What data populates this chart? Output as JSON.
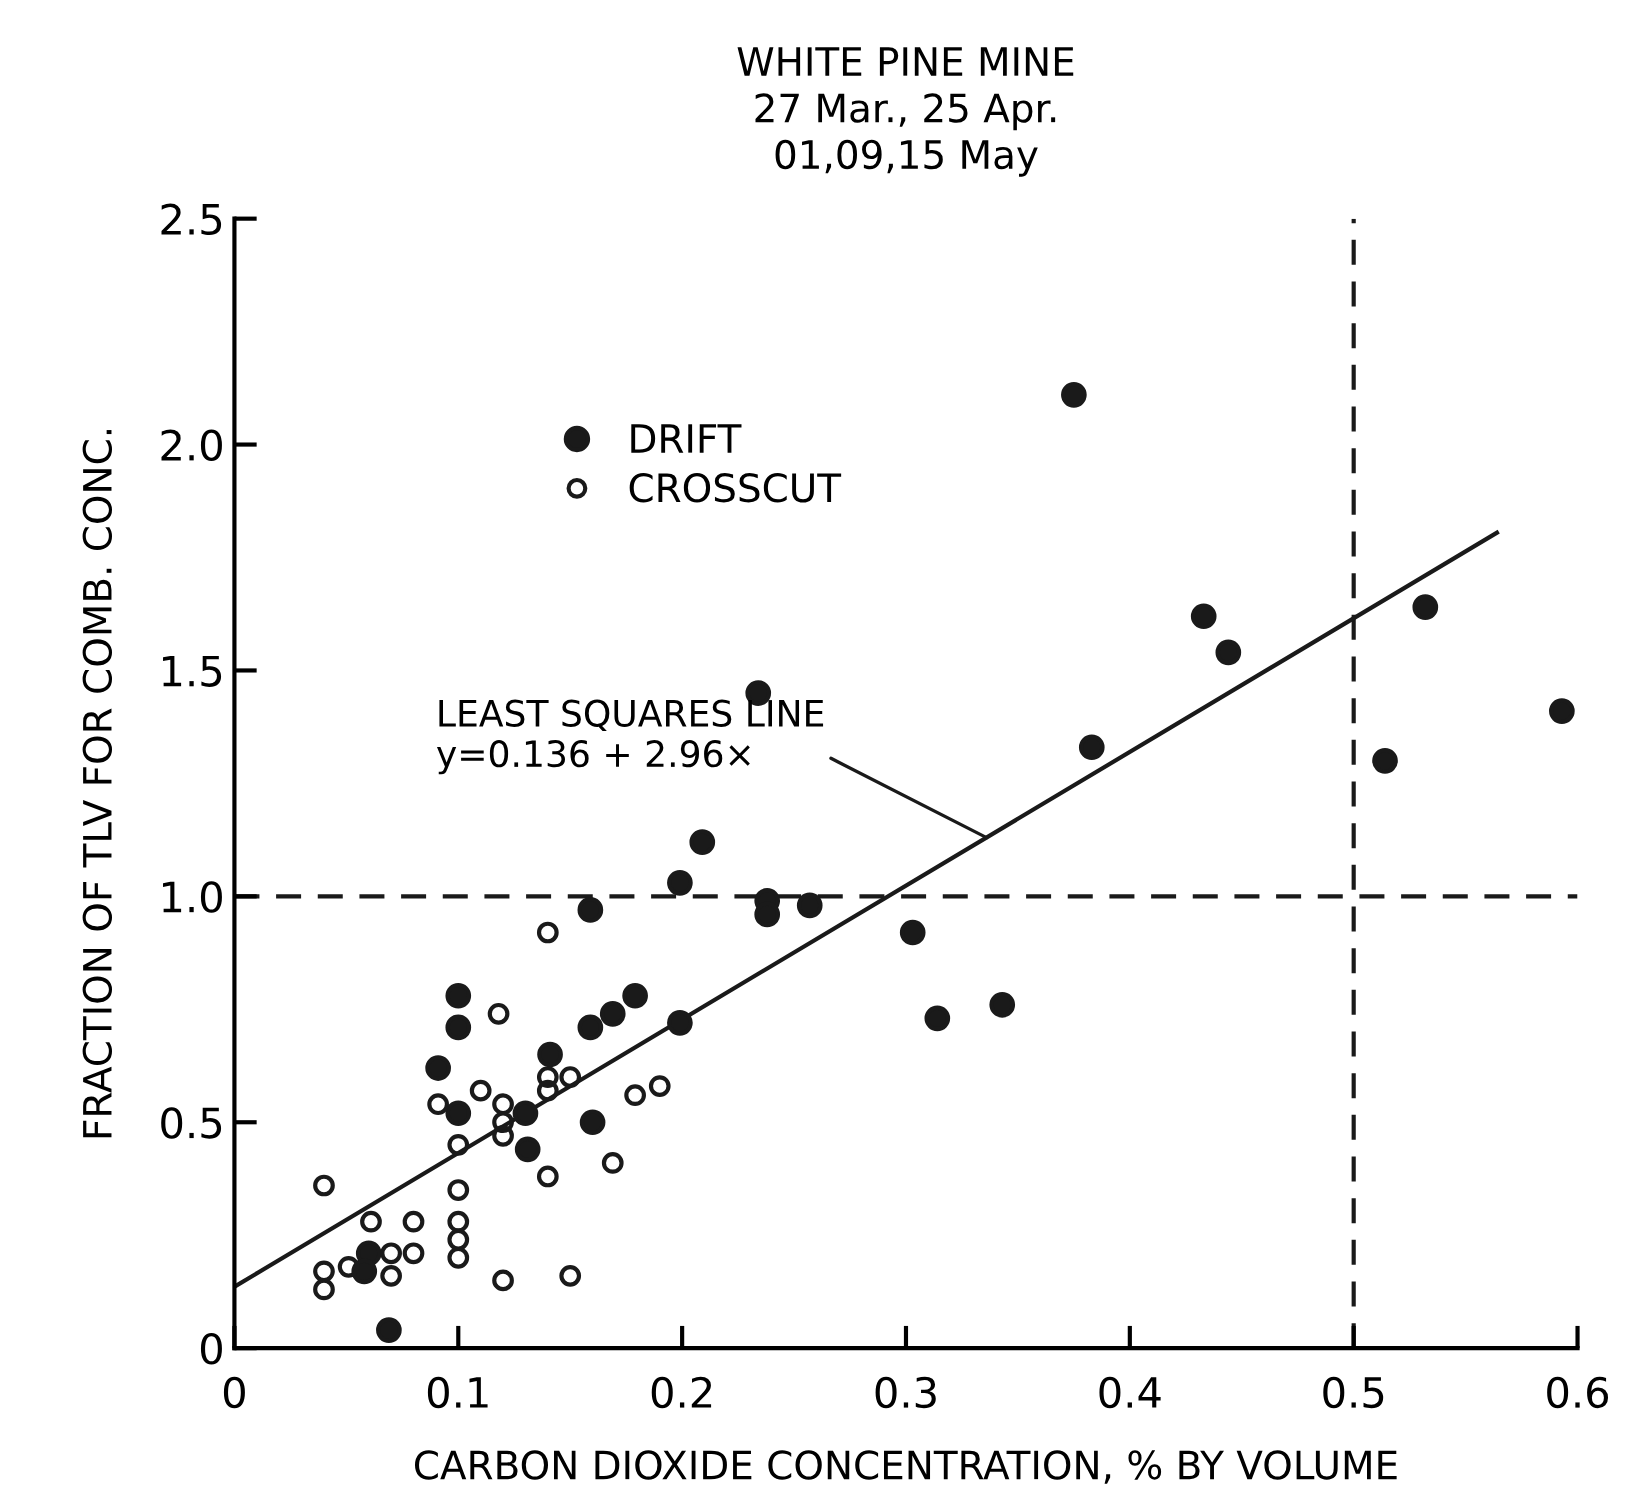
{
  "chart_data": {
    "type": "scatter",
    "title": "WHITE PINE MINE\n27 Mar., 25 Apr.\n01,09,15 May",
    "xlabel": "CARBON DIOXIDE CONCENTRATION, % BY VOLUME",
    "ylabel": "FRACTION OF TLV FOR COMB. CONC.",
    "xlim": [
      0,
      0.6
    ],
    "ylim": [
      0,
      2.5
    ],
    "xticks": [
      0,
      0.1,
      0.2,
      0.3,
      0.4,
      0.5,
      0.6
    ],
    "yticks": [
      0,
      0.5,
      {
        "value": 1,
        "label": "1.0"
      },
      1.5,
      {
        "value": 2,
        "label": "2.0"
      },
      2.5
    ],
    "grid": false,
    "legend": "top left",
    "marker": "circle",
    "series": [
      {
        "name": "DRIFT",
        "color": "#1a1a1a",
        "x": [
          0.209,
          0.199,
          0.238,
          0.238,
          0.257,
          0.159,
          0.1,
          0.1,
          0.179,
          0.169,
          0.159,
          0.199,
          0.091,
          0.141,
          0.1,
          0.13,
          0.131,
          0.16,
          0.06,
          0.058,
          0.069,
          0.375,
          0.433,
          0.444,
          0.532,
          0.383,
          0.593,
          0.514,
          0.234,
          0.303,
          0.314,
          0.343
        ],
        "values": [
          1.12,
          1.03,
          0.99,
          0.96,
          0.98,
          0.97,
          0.78,
          0.71,
          0.78,
          0.74,
          0.71,
          0.72,
          0.62,
          0.65,
          0.52,
          0.52,
          0.44,
          0.5,
          0.21,
          0.17,
          0.04,
          2.11,
          1.62,
          1.54,
          1.64,
          1.33,
          1.41,
          1.3,
          1.45,
          0.92,
          0.73,
          0.76
        ]
      },
      {
        "name": "CROSSCUT",
        "color": "#1a1a1a",
        "x": [
          0.14,
          0.118,
          0.11,
          0.091,
          0.12,
          0.12,
          0.12,
          0.14,
          0.14,
          0.15,
          0.179,
          0.19,
          0.1,
          0.169,
          0.14,
          0.04,
          0.1,
          0.1,
          0.1,
          0.1,
          0.061,
          0.08,
          0.07,
          0.08,
          0.051,
          0.04,
          0.04,
          0.07,
          0.12,
          0.15
        ],
        "values": [
          0.92,
          0.74,
          0.57,
          0.54,
          0.54,
          0.5,
          0.47,
          0.6,
          0.57,
          0.6,
          0.56,
          0.58,
          0.45,
          0.41,
          0.38,
          0.36,
          0.35,
          0.28,
          0.24,
          0.2,
          0.28,
          0.28,
          0.21,
          0.21,
          0.18,
          0.17,
          0.13,
          0.16,
          0.15,
          0.16
        ]
      },
      {
        "type": "line",
        "color": "#1a1a1a",
        "line_style": "solid",
        "marker": "none",
        "x": [
          0,
          0.564
        ],
        "values": [
          0.136,
          1.805
        ]
      }
    ],
    "ref_lines": [
      {
        "axis": "y",
        "value": 1.0,
        "color": "#1a1a1a",
        "line_style": "dashed"
      },
      {
        "axis": "x",
        "value": 0.5,
        "color": "#1a1a1a",
        "line_style": "dashed"
      }
    ],
    "annotations": [
      {
        "text": "LEAST SQUARES LINE\ny=0.136 + 2.96×",
        "x": 0.336,
        "y": 1.13
      }
    ]
  }
}
